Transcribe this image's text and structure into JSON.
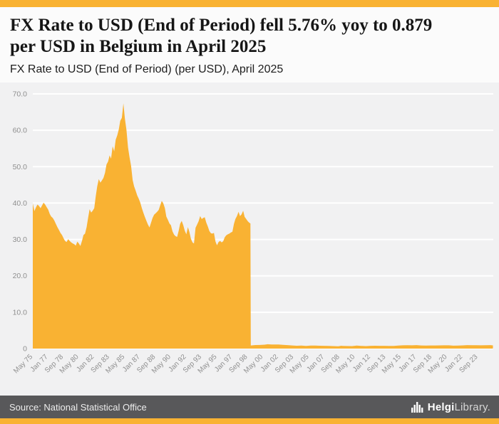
{
  "accent_color": "#F9B233",
  "header": {
    "title_line1": "FX Rate to USD (End of Period) fell 5.76% yoy to 0.879",
    "title_line2": "per USD in Belgium in April 2025",
    "subtitle": "FX Rate to USD (End of Period) (per USD), April 2025"
  },
  "footer": {
    "source": "Source: National Statistical Office",
    "logo_bold": "Helgi",
    "logo_light": "Library."
  },
  "chart_data": {
    "type": "area",
    "title": "FX Rate to USD (End of Period) (per USD), April 2025",
    "series_name": "FX Rate to USD (End of Period), Belgium",
    "unit": "per USD",
    "fill_color": "#F9B233",
    "grid": "horizontal-white-lines",
    "legend": "none",
    "ylim": [
      0,
      70
    ],
    "x_domain": [
      1975.33,
      2025.33
    ],
    "y_ticks": [
      {
        "v": 70,
        "label": "70.0"
      },
      {
        "v": 60,
        "label": "60.0"
      },
      {
        "v": 50,
        "label": "50.0"
      },
      {
        "v": 40,
        "label": "40.0"
      },
      {
        "v": 30,
        "label": "30.0"
      },
      {
        "v": 20,
        "label": "20.0"
      },
      {
        "v": 10,
        "label": "10.0"
      },
      {
        "v": 0,
        "label": "0"
      }
    ],
    "x_ticks": [
      {
        "t": 1975.333,
        "label": "May 75"
      },
      {
        "t": 1977.0,
        "label": "Jan 77"
      },
      {
        "t": 1978.667,
        "label": "Sep 78"
      },
      {
        "t": 1980.333,
        "label": "May 80"
      },
      {
        "t": 1982.0,
        "label": "Jan 82"
      },
      {
        "t": 1983.667,
        "label": "Sep 83"
      },
      {
        "t": 1985.333,
        "label": "May 85"
      },
      {
        "t": 1987.0,
        "label": "Jan 87"
      },
      {
        "t": 1988.667,
        "label": "Sep 88"
      },
      {
        "t": 1990.333,
        "label": "May 90"
      },
      {
        "t": 1992.0,
        "label": "Jan 92"
      },
      {
        "t": 1993.667,
        "label": "Sep 93"
      },
      {
        "t": 1995.333,
        "label": "May 95"
      },
      {
        "t": 1997.0,
        "label": "Jan 97"
      },
      {
        "t": 1998.667,
        "label": "Sep 98"
      },
      {
        "t": 2000.333,
        "label": "May 00"
      },
      {
        "t": 2002.0,
        "label": "Jan 02"
      },
      {
        "t": 2003.667,
        "label": "Sep 03"
      },
      {
        "t": 2005.333,
        "label": "May 05"
      },
      {
        "t": 2007.0,
        "label": "Jan 07"
      },
      {
        "t": 2008.667,
        "label": "Sep 08"
      },
      {
        "t": 2010.333,
        "label": "May 10"
      },
      {
        "t": 2012.0,
        "label": "Jan 12"
      },
      {
        "t": 2013.667,
        "label": "Sep 13"
      },
      {
        "t": 2015.333,
        "label": "May 15"
      },
      {
        "t": 2017.0,
        "label": "Jan 17"
      },
      {
        "t": 2018.667,
        "label": "Sep 18"
      },
      {
        "t": 2020.333,
        "label": "May 20"
      },
      {
        "t": 2022.0,
        "label": "Jan 22"
      },
      {
        "t": 2023.667,
        "label": "Sep 23"
      }
    ],
    "latest_value": 0.879,
    "latest_period": "April 2025",
    "yoy_change_pct": -5.76,
    "points": [
      [
        1975.33,
        39.9
      ],
      [
        1975.5,
        37.8
      ],
      [
        1975.67,
        38.8
      ],
      [
        1975.83,
        39.6
      ],
      [
        1976.0,
        39.2
      ],
      [
        1976.17,
        38.6
      ],
      [
        1976.33,
        39.3
      ],
      [
        1976.5,
        40.1
      ],
      [
        1976.67,
        39.6
      ],
      [
        1976.83,
        38.9
      ],
      [
        1977.0,
        38.2
      ],
      [
        1977.17,
        37.0
      ],
      [
        1977.33,
        36.3
      ],
      [
        1977.5,
        35.9
      ],
      [
        1977.67,
        35.2
      ],
      [
        1977.83,
        34.3
      ],
      [
        1978.0,
        33.4
      ],
      [
        1978.17,
        32.6
      ],
      [
        1978.33,
        31.8
      ],
      [
        1978.5,
        31.2
      ],
      [
        1978.67,
        30.3
      ],
      [
        1978.83,
        29.6
      ],
      [
        1979.0,
        29.3
      ],
      [
        1979.17,
        30.1
      ],
      [
        1979.33,
        29.6
      ],
      [
        1979.5,
        29.2
      ],
      [
        1979.67,
        28.9
      ],
      [
        1979.83,
        28.7
      ],
      [
        1980.0,
        28.3
      ],
      [
        1980.17,
        29.4
      ],
      [
        1980.33,
        28.9
      ],
      [
        1980.5,
        28.2
      ],
      [
        1980.67,
        29.6
      ],
      [
        1980.83,
        31.2
      ],
      [
        1981.0,
        31.6
      ],
      [
        1981.17,
        33.4
      ],
      [
        1981.33,
        35.8
      ],
      [
        1981.5,
        38.3
      ],
      [
        1981.67,
        37.4
      ],
      [
        1981.83,
        37.9
      ],
      [
        1982.0,
        38.6
      ],
      [
        1982.17,
        42.0
      ],
      [
        1982.33,
        44.6
      ],
      [
        1982.5,
        46.6
      ],
      [
        1982.67,
        45.6
      ],
      [
        1982.83,
        46.2
      ],
      [
        1983.0,
        46.9
      ],
      [
        1983.17,
        48.3
      ],
      [
        1983.33,
        50.6
      ],
      [
        1983.5,
        51.4
      ],
      [
        1983.67,
        53.1
      ],
      [
        1983.83,
        52.2
      ],
      [
        1984.0,
        55.6
      ],
      [
        1984.17,
        54.2
      ],
      [
        1984.33,
        57.4
      ],
      [
        1984.5,
        58.6
      ],
      [
        1984.67,
        60.3
      ],
      [
        1984.83,
        62.6
      ],
      [
        1985.0,
        63.4
      ],
      [
        1985.08,
        65.3
      ],
      [
        1985.17,
        67.4
      ],
      [
        1985.33,
        63.2
      ],
      [
        1985.5,
        60.1
      ],
      [
        1985.67,
        55.3
      ],
      [
        1985.83,
        52.6
      ],
      [
        1986.0,
        50.2
      ],
      [
        1986.17,
        46.3
      ],
      [
        1986.33,
        44.6
      ],
      [
        1986.5,
        43.4
      ],
      [
        1986.67,
        42.1
      ],
      [
        1986.83,
        41.2
      ],
      [
        1987.0,
        40.1
      ],
      [
        1987.17,
        38.6
      ],
      [
        1987.33,
        37.4
      ],
      [
        1987.5,
        36.2
      ],
      [
        1987.67,
        35.1
      ],
      [
        1987.83,
        34.1
      ],
      [
        1988.0,
        33.3
      ],
      [
        1988.17,
        34.6
      ],
      [
        1988.33,
        35.9
      ],
      [
        1988.5,
        36.8
      ],
      [
        1988.67,
        37.2
      ],
      [
        1988.83,
        37.6
      ],
      [
        1989.0,
        38.1
      ],
      [
        1989.17,
        39.4
      ],
      [
        1989.33,
        40.6
      ],
      [
        1989.5,
        39.9
      ],
      [
        1989.67,
        38.6
      ],
      [
        1989.83,
        36.3
      ],
      [
        1990.0,
        35.4
      ],
      [
        1990.17,
        34.4
      ],
      [
        1990.33,
        33.9
      ],
      [
        1990.5,
        32.2
      ],
      [
        1990.67,
        31.3
      ],
      [
        1990.83,
        30.9
      ],
      [
        1991.0,
        30.7
      ],
      [
        1991.17,
        32.4
      ],
      [
        1991.33,
        34.3
      ],
      [
        1991.5,
        35.1
      ],
      [
        1991.67,
        33.9
      ],
      [
        1991.83,
        32.4
      ],
      [
        1992.0,
        31.4
      ],
      [
        1992.17,
        33.4
      ],
      [
        1992.33,
        32.1
      ],
      [
        1992.5,
        30.2
      ],
      [
        1992.67,
        29.2
      ],
      [
        1992.83,
        28.9
      ],
      [
        1993.0,
        33.2
      ],
      [
        1993.17,
        34.1
      ],
      [
        1993.33,
        35.0
      ],
      [
        1993.5,
        36.4
      ],
      [
        1993.67,
        35.6
      ],
      [
        1993.83,
        35.9
      ],
      [
        1994.0,
        36.1
      ],
      [
        1994.17,
        34.6
      ],
      [
        1994.33,
        33.6
      ],
      [
        1994.5,
        32.3
      ],
      [
        1994.67,
        31.7
      ],
      [
        1994.83,
        31.6
      ],
      [
        1995.0,
        31.8
      ],
      [
        1995.17,
        29.4
      ],
      [
        1995.33,
        28.4
      ],
      [
        1995.5,
        29.3
      ],
      [
        1995.67,
        29.6
      ],
      [
        1995.83,
        29.2
      ],
      [
        1996.0,
        29.5
      ],
      [
        1996.17,
        30.6
      ],
      [
        1996.33,
        31.1
      ],
      [
        1996.5,
        31.4
      ],
      [
        1996.67,
        31.6
      ],
      [
        1996.83,
        31.9
      ],
      [
        1997.0,
        32.1
      ],
      [
        1997.17,
        34.3
      ],
      [
        1997.33,
        35.6
      ],
      [
        1997.5,
        36.4
      ],
      [
        1997.67,
        37.6
      ],
      [
        1997.83,
        36.4
      ],
      [
        1998.0,
        36.9
      ],
      [
        1998.17,
        37.9
      ],
      [
        1998.33,
        36.2
      ],
      [
        1998.5,
        35.6
      ],
      [
        1998.67,
        35.0
      ],
      [
        1998.83,
        34.6
      ],
      [
        1998.96,
        34.4
      ],
      [
        1999.0,
        0.86
      ],
      [
        1999.5,
        0.97
      ],
      [
        2000.0,
        0.99
      ],
      [
        2000.5,
        1.08
      ],
      [
        2000.83,
        1.19
      ],
      [
        2001.25,
        1.14
      ],
      [
        2001.75,
        1.12
      ],
      [
        2002.0,
        1.13
      ],
      [
        2002.5,
        1.01
      ],
      [
        2003.0,
        0.95
      ],
      [
        2003.5,
        0.87
      ],
      [
        2004.0,
        0.79
      ],
      [
        2004.5,
        0.82
      ],
      [
        2005.0,
        0.73
      ],
      [
        2005.5,
        0.83
      ],
      [
        2006.0,
        0.85
      ],
      [
        2006.5,
        0.78
      ],
      [
        2007.0,
        0.76
      ],
      [
        2007.5,
        0.73
      ],
      [
        2008.0,
        0.68
      ],
      [
        2008.5,
        0.63
      ],
      [
        2008.83,
        0.78
      ],
      [
        2009.0,
        0.72
      ],
      [
        2009.5,
        0.71
      ],
      [
        2010.0,
        0.69
      ],
      [
        2010.5,
        0.82
      ],
      [
        2011.0,
        0.75
      ],
      [
        2011.5,
        0.69
      ],
      [
        2012.0,
        0.77
      ],
      [
        2012.5,
        0.79
      ],
      [
        2013.0,
        0.76
      ],
      [
        2013.5,
        0.77
      ],
      [
        2014.0,
        0.73
      ],
      [
        2014.5,
        0.73
      ],
      [
        2015.0,
        0.82
      ],
      [
        2015.5,
        0.9
      ],
      [
        2016.0,
        0.92
      ],
      [
        2016.5,
        0.9
      ],
      [
        2017.0,
        0.95
      ],
      [
        2017.5,
        0.87
      ],
      [
        2018.0,
        0.83
      ],
      [
        2018.5,
        0.86
      ],
      [
        2019.0,
        0.87
      ],
      [
        2019.5,
        0.88
      ],
      [
        2020.0,
        0.89
      ],
      [
        2020.5,
        0.89
      ],
      [
        2021.0,
        0.81
      ],
      [
        2021.5,
        0.84
      ],
      [
        2022.0,
        0.88
      ],
      [
        2022.5,
        0.96
      ],
      [
        2023.0,
        0.93
      ],
      [
        2023.5,
        0.92
      ],
      [
        2024.0,
        0.9
      ],
      [
        2024.5,
        0.93
      ],
      [
        2025.0,
        0.96
      ],
      [
        2025.29,
        0.879
      ]
    ]
  }
}
